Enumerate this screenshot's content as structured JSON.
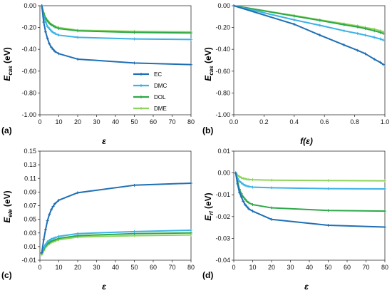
{
  "series_styles": [
    {
      "name": "EC",
      "color": "#1f6fb4"
    },
    {
      "name": "DMC",
      "color": "#3bb2e6"
    },
    {
      "name": "DOL",
      "color": "#2ea84a"
    },
    {
      "name": "DME",
      "color": "#8fd45b"
    }
  ],
  "chart_data": [
    {
      "type": "line",
      "panel_label": "(a)",
      "xlabel": "ε",
      "ylabel_main": "E",
      "ylabel_sub": "cas",
      "ylabel_unit": " (eV)",
      "xlim": [
        0,
        80
      ],
      "ylim": [
        -1.0,
        0.0
      ],
      "xticks": [
        0,
        10,
        20,
        30,
        40,
        50,
        60,
        70,
        80
      ],
      "yticks": [
        0,
        -0.2,
        -0.4,
        -0.6,
        -0.8,
        -1.0
      ],
      "xtick_labels": [
        "0",
        "10",
        "20",
        "30",
        "40",
        "50",
        "60",
        "70",
        "80"
      ],
      "ytick_labels": [
        "0.00",
        "-0.20",
        "-0.40",
        "-0.60",
        "-0.80",
        "-1.00"
      ],
      "legend": "center-right",
      "series": [
        {
          "name": "EC",
          "x": [
            1,
            2,
            3,
            4,
            5,
            6,
            7,
            8,
            10,
            20,
            50,
            80
          ],
          "y": [
            0,
            -0.15,
            -0.24,
            -0.3,
            -0.35,
            -0.38,
            -0.4,
            -0.42,
            -0.44,
            -0.49,
            -0.525,
            -0.54
          ]
        },
        {
          "name": "DMC",
          "x": [
            1,
            2,
            3,
            4,
            5,
            6,
            7,
            8,
            10,
            20,
            50,
            80
          ],
          "y": [
            0,
            -0.1,
            -0.15,
            -0.19,
            -0.21,
            -0.23,
            -0.245,
            -0.255,
            -0.27,
            -0.29,
            -0.305,
            -0.31
          ]
        },
        {
          "name": "DOL",
          "x": [
            1,
            2,
            3,
            4,
            5,
            6,
            7,
            8,
            10,
            20,
            50,
            80
          ],
          "y": [
            0,
            -0.07,
            -0.115,
            -0.14,
            -0.16,
            -0.175,
            -0.185,
            -0.195,
            -0.21,
            -0.23,
            -0.245,
            -0.25
          ]
        },
        {
          "name": "DME",
          "x": [
            1,
            2,
            3,
            4,
            5,
            6,
            7,
            8,
            10,
            20,
            50,
            80
          ],
          "y": [
            0,
            -0.065,
            -0.11,
            -0.135,
            -0.155,
            -0.17,
            -0.18,
            -0.19,
            -0.2,
            -0.225,
            -0.235,
            -0.24
          ]
        }
      ],
      "legend_labels": [
        "EC",
        "DMC",
        "DOL",
        "DME"
      ]
    },
    {
      "type": "line",
      "panel_label": "(b)",
      "xlabel": "f(ε)",
      "ylabel_main": "E",
      "ylabel_sub": "cas",
      "ylabel_unit": " (eV)",
      "xlim": [
        0,
        1.0
      ],
      "ylim": [
        -1.0,
        0.0
      ],
      "xticks": [
        0,
        0.2,
        0.4,
        0.6,
        0.8,
        1.0
      ],
      "yticks": [
        0,
        -0.2,
        -0.4,
        -0.6,
        -0.8,
        -1.0
      ],
      "xtick_labels": [
        "0.0",
        "0.2",
        "0.4",
        "0.6",
        "0.8",
        "1.0"
      ],
      "ytick_labels": [
        "0.00",
        "-0.20",
        "-0.40",
        "-0.60",
        "-0.80",
        "-1.00"
      ],
      "series": [
        {
          "name": "EC",
          "x": [
            0,
            0.4,
            0.57,
            0.73,
            0.82,
            0.87,
            0.93,
            0.97,
            0.99
          ],
          "y": [
            0,
            -0.17,
            -0.27,
            -0.36,
            -0.41,
            -0.44,
            -0.49,
            -0.52,
            -0.54
          ]
        },
        {
          "name": "DMC",
          "x": [
            0,
            0.4,
            0.57,
            0.73,
            0.82,
            0.87,
            0.93,
            0.97,
            0.99
          ],
          "y": [
            0,
            -0.13,
            -0.18,
            -0.23,
            -0.255,
            -0.27,
            -0.29,
            -0.305,
            -0.315
          ]
        },
        {
          "name": "DOL",
          "x": [
            0,
            0.4,
            0.57,
            0.73,
            0.82,
            0.87,
            0.93,
            0.97,
            0.99
          ],
          "y": [
            0,
            -0.095,
            -0.135,
            -0.175,
            -0.195,
            -0.21,
            -0.23,
            -0.245,
            -0.255
          ]
        },
        {
          "name": "DME",
          "x": [
            0,
            0.4,
            0.57,
            0.73,
            0.82,
            0.87,
            0.93,
            0.97,
            0.99
          ],
          "y": [
            0,
            -0.09,
            -0.13,
            -0.165,
            -0.185,
            -0.2,
            -0.215,
            -0.23,
            -0.24
          ]
        }
      ]
    },
    {
      "type": "line",
      "panel_label": "(c)",
      "xlabel": "ε",
      "ylabel_main": "E",
      "ylabel_sub": "ele",
      "ylabel_unit": " (eV)",
      "xlim": [
        0,
        80
      ],
      "ylim": [
        -0.01,
        0.15
      ],
      "xticks": [
        0,
        10,
        20,
        30,
        40,
        50,
        60,
        70,
        80
      ],
      "yticks": [
        -0.01,
        0.01,
        0.03,
        0.05,
        0.07,
        0.09,
        0.11,
        0.13,
        0.15
      ],
      "xtick_labels": [
        "0",
        "10",
        "20",
        "30",
        "40",
        "50",
        "60",
        "70",
        "80"
      ],
      "ytick_labels": [
        "-0.01",
        "0.01",
        "0.03",
        "0.05",
        "0.07",
        "0.09",
        "0.11",
        "0.13",
        "0.15"
      ],
      "series": [
        {
          "name": "EC",
          "x": [
            1,
            2,
            3,
            4,
            5,
            6,
            7,
            8,
            10,
            20,
            50,
            80
          ],
          "y": [
            0.001,
            0.02,
            0.035,
            0.048,
            0.057,
            0.064,
            0.069,
            0.073,
            0.078,
            0.089,
            0.1,
            0.103
          ]
        },
        {
          "name": "DMC",
          "x": [
            1,
            2,
            3,
            4,
            5,
            6,
            7,
            8,
            10,
            20,
            50,
            80
          ],
          "y": [
            0,
            0.008,
            0.013,
            0.017,
            0.019,
            0.021,
            0.022,
            0.023,
            0.025,
            0.029,
            0.032,
            0.034
          ]
        },
        {
          "name": "DOL",
          "x": [
            1,
            2,
            3,
            4,
            5,
            6,
            7,
            8,
            10,
            20,
            50,
            80
          ],
          "y": [
            0,
            0.006,
            0.011,
            0.014,
            0.016,
            0.018,
            0.019,
            0.02,
            0.022,
            0.026,
            0.029,
            0.03
          ]
        },
        {
          "name": "DME",
          "x": [
            1,
            2,
            3,
            4,
            5,
            6,
            7,
            8,
            10,
            20,
            50,
            80
          ],
          "y": [
            -0.002,
            0.004,
            0.009,
            0.012,
            0.014,
            0.016,
            0.017,
            0.018,
            0.02,
            0.024,
            0.026,
            0.027
          ]
        }
      ]
    },
    {
      "type": "line",
      "panel_label": "(d)",
      "xlabel": "ε",
      "ylabel_main": "E",
      "ylabel_sub": "rl",
      "ylabel_unit": " (eV)",
      "xlim": [
        0,
        80
      ],
      "ylim": [
        -0.04,
        0.01
      ],
      "xticks": [
        0,
        10,
        20,
        30,
        40,
        50,
        60,
        70,
        80
      ],
      "yticks": [
        0.01,
        0,
        -0.01,
        -0.02,
        -0.03,
        -0.04
      ],
      "xtick_labels": [
        "0",
        "10",
        "20",
        "30",
        "40",
        "50",
        "60",
        "70",
        "80"
      ],
      "ytick_labels": [
        "0.01",
        "0.00",
        "-0.01",
        "-0.02",
        "-0.03",
        "-0.04"
      ],
      "series": [
        {
          "name": "EC",
          "x": [
            1,
            2,
            3,
            4,
            5,
            6,
            7,
            8,
            10,
            20,
            50,
            80
          ],
          "y": [
            0,
            -0.005,
            -0.009,
            -0.011,
            -0.013,
            -0.0145,
            -0.0155,
            -0.0165,
            -0.0175,
            -0.0213,
            -0.024,
            -0.0248
          ]
        },
        {
          "name": "DMC",
          "x": [
            1,
            2,
            3,
            4,
            5,
            6,
            7,
            8,
            10,
            20,
            50,
            80
          ],
          "y": [
            0,
            -0.0025,
            -0.0038,
            -0.0045,
            -0.0052,
            -0.0057,
            -0.006,
            -0.0062,
            -0.0065,
            -0.0068,
            -0.0072,
            -0.0073
          ]
        },
        {
          "name": "DOL",
          "x": [
            1,
            2,
            3,
            4,
            5,
            6,
            7,
            8,
            10,
            20,
            50,
            80
          ],
          "y": [
            0,
            -0.004,
            -0.0075,
            -0.0095,
            -0.011,
            -0.012,
            -0.013,
            -0.0137,
            -0.0145,
            -0.016,
            -0.0172,
            -0.0175
          ]
        },
        {
          "name": "DME",
          "x": [
            1,
            2,
            3,
            4,
            5,
            6,
            7,
            8,
            10,
            20,
            50,
            80
          ],
          "y": [
            0,
            -0.001,
            -0.0017,
            -0.0022,
            -0.0025,
            -0.0027,
            -0.0029,
            -0.003,
            -0.0031,
            -0.0033,
            -0.0035,
            -0.0036
          ]
        }
      ]
    }
  ]
}
